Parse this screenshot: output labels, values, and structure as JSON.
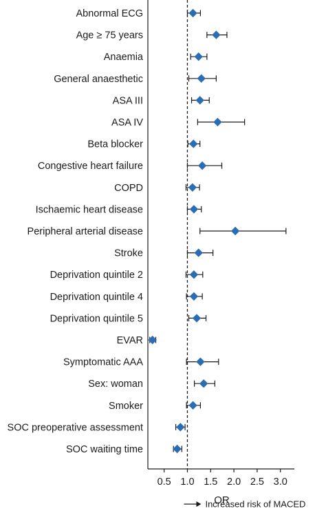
{
  "chart_data": {
    "type": "forest",
    "xlabel": "OR",
    "xlim": [
      0.15,
      3.3
    ],
    "xticks": [
      0.5,
      1.0,
      1.5,
      2.0,
      2.5,
      3.0
    ],
    "xtick_labels": [
      "0.5",
      "1.0",
      "1.5",
      "2.0",
      "2.5",
      "3.0"
    ],
    "reference_line": 1.0,
    "annotation": "Increased risk of MACED",
    "marker_color": "#2a6db5",
    "rows": [
      {
        "label": "Abnormal ECG",
        "or": 1.12,
        "lower": 1.0,
        "upper": 1.28
      },
      {
        "label": "Age ≥    75 years",
        "or": 1.62,
        "lower": 1.42,
        "upper": 1.85
      },
      {
        "label": "Anaemia",
        "or": 1.24,
        "lower": 1.07,
        "upper": 1.42
      },
      {
        "label": "General anaesthetic",
        "or": 1.3,
        "lower": 1.03,
        "upper": 1.62
      },
      {
        "label": "ASA III",
        "or": 1.27,
        "lower": 1.09,
        "upper": 1.47
      },
      {
        "label": "ASA IV",
        "or": 1.65,
        "lower": 1.22,
        "upper": 2.23
      },
      {
        "label": "Beta blocker",
        "or": 1.13,
        "lower": 1.01,
        "upper": 1.27
      },
      {
        "label": "Congestive heart failure",
        "or": 1.32,
        "lower": 1.0,
        "upper": 1.74
      },
      {
        "label": "COPD",
        "or": 1.11,
        "lower": 0.97,
        "upper": 1.26
      },
      {
        "label": "Ischaemic heart disease",
        "or": 1.14,
        "lower": 1.0,
        "upper": 1.3
      },
      {
        "label": "Peripheral arterial disease",
        "or": 2.03,
        "lower": 1.27,
        "upper": 3.12
      },
      {
        "label": "Stroke",
        "or": 1.24,
        "lower": 1.0,
        "upper": 1.55
      },
      {
        "label": "Deprivation quintile 2",
        "or": 1.14,
        "lower": 0.97,
        "upper": 1.33
      },
      {
        "label": "Deprivation quintile 4",
        "or": 1.14,
        "lower": 0.98,
        "upper": 1.32
      },
      {
        "label": "Deprivation quintile 5",
        "or": 1.2,
        "lower": 1.03,
        "upper": 1.4
      },
      {
        "label": "EVAR",
        "or": 0.25,
        "lower": 0.19,
        "upper": 0.32
      },
      {
        "label": "Symptomatic AAA",
        "or": 1.28,
        "lower": 0.98,
        "upper": 1.67
      },
      {
        "label": "Sex: woman",
        "or": 1.35,
        "lower": 1.15,
        "upper": 1.59
      },
      {
        "label": "Smoker",
        "or": 1.12,
        "lower": 0.98,
        "upper": 1.28
      },
      {
        "label": "SOC preoperative assessment",
        "or": 0.85,
        "lower": 0.75,
        "upper": 0.95
      },
      {
        "label": "SOC waiting time",
        "or": 0.78,
        "lower": 0.7,
        "upper": 0.88
      }
    ]
  }
}
